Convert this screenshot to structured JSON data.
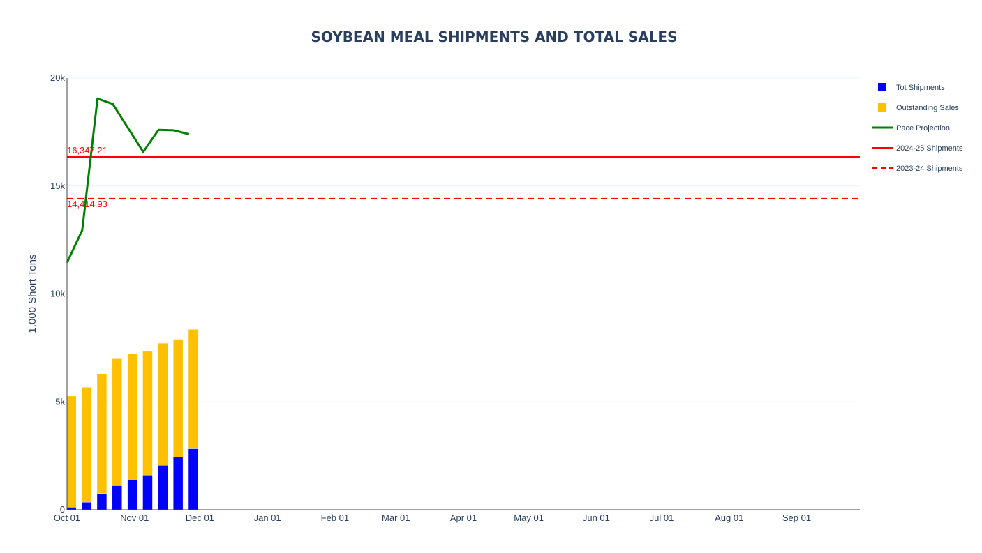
{
  "chart_data": {
    "type": "bar",
    "title": "SOYBEAN MEAL SHIPMENTS AND TOTAL SALES",
    "ylabel": "1,000 Short Tons",
    "xlabel": "",
    "barmode": "stack",
    "ylim": [
      0,
      20000
    ],
    "xlim": [
      "2024-10-01",
      "2025-09-30"
    ],
    "yticks": [
      0,
      5000,
      10000,
      15000,
      20000
    ],
    "ytick_labels": [
      "0",
      "5k",
      "10k",
      "15k",
      "20k"
    ],
    "xticks": [
      "2024-10-01",
      "2024-11-01",
      "2024-12-01",
      "2025-01-01",
      "2025-02-01",
      "2025-03-01",
      "2025-04-01",
      "2025-05-01",
      "2025-06-01",
      "2025-07-01",
      "2025-08-01",
      "2025-09-01"
    ],
    "xtick_labels": [
      "Oct 01",
      "Nov 01",
      "Dec 01",
      "Jan 01",
      "Feb 01",
      "Mar 01",
      "Apr 01",
      "May 01",
      "Jun 01",
      "Jul 01",
      "Aug 01",
      "Sep 01"
    ],
    "grid": "horizontal",
    "legend_position": "right",
    "dates": [
      "2024-10-03",
      "2024-10-10",
      "2024-10-17",
      "2024-10-24",
      "2024-10-31",
      "2024-11-07",
      "2024-11-14",
      "2024-11-21",
      "2024-11-28"
    ],
    "series": [
      {
        "name": "Tot Shipments",
        "type": "bar",
        "color": "#0000ff",
        "values": [
          120,
          350,
          760,
          1120,
          1380,
          1610,
          2060,
          2440,
          2830
        ]
      },
      {
        "name": "Outstanding Sales",
        "type": "bar",
        "color": "#ffc000",
        "values": [
          5150,
          5330,
          5520,
          5880,
          5850,
          5730,
          5660,
          5460,
          5530
        ]
      },
      {
        "name": "Pace Projection",
        "type": "line",
        "color": "#008000",
        "style": "solid",
        "x": [
          "2024-10-01",
          "2024-10-08",
          "2024-10-15",
          "2024-10-22",
          "2024-11-05",
          "2024-11-12",
          "2024-11-19",
          "2024-11-26"
        ],
        "values": [
          11450,
          12950,
          19050,
          18800,
          16580,
          17600,
          17580,
          17400
        ]
      },
      {
        "name": "2024-25 Shipments",
        "type": "hline",
        "color": "#ff0000",
        "style": "solid",
        "value": 16347.21
      },
      {
        "name": "2023-24 Shipments",
        "type": "hline",
        "color": "#ff0000",
        "style": "dash",
        "value": 14414.93
      }
    ],
    "annotations": [
      {
        "text": "16,347.21",
        "color": "#ff0000",
        "at": "2024-25 Shipments",
        "position": "above-left"
      },
      {
        "text": "14,414.93",
        "color": "#ff0000",
        "at": "2023-24 Shipments",
        "position": "below-left"
      }
    ]
  }
}
